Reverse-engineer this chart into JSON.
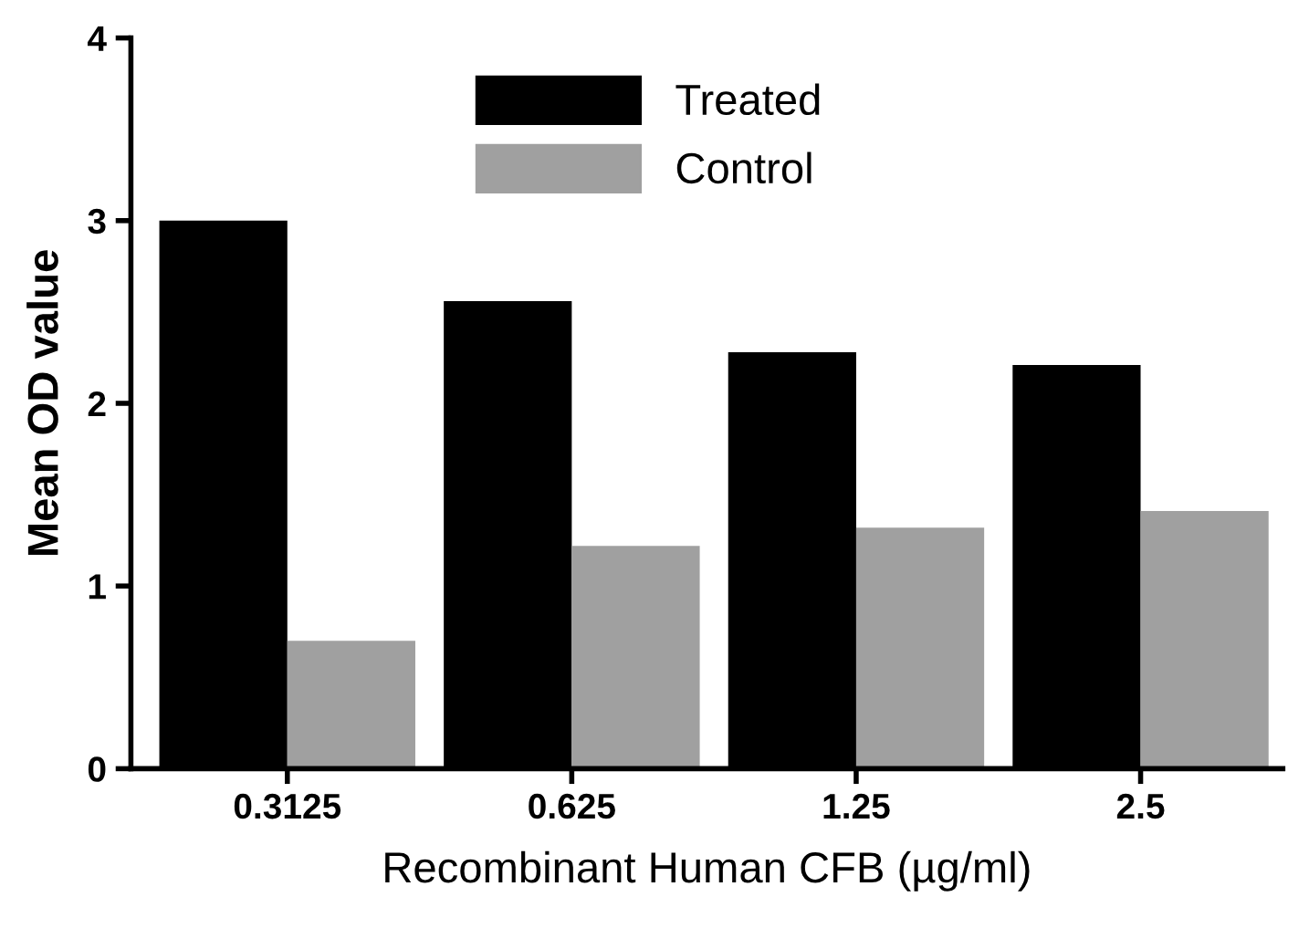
{
  "chart_data": {
    "type": "bar",
    "xlabel": "Recombinant Human CFB (µg/ml)",
    "ylabel": "Mean OD value",
    "categories": [
      "0.3125",
      "0.625",
      "1.25",
      "2.5"
    ],
    "series": [
      {
        "name": "Treated",
        "color": "#000000",
        "values": [
          3.0,
          2.56,
          2.28,
          2.21
        ]
      },
      {
        "name": "Control",
        "color": "#a0a0a0",
        "values": [
          0.7,
          1.22,
          1.32,
          1.41
        ]
      }
    ],
    "ylim": [
      0,
      4
    ],
    "yticks": [
      0,
      1,
      2,
      3,
      4
    ],
    "grid": false,
    "legend": "top"
  }
}
